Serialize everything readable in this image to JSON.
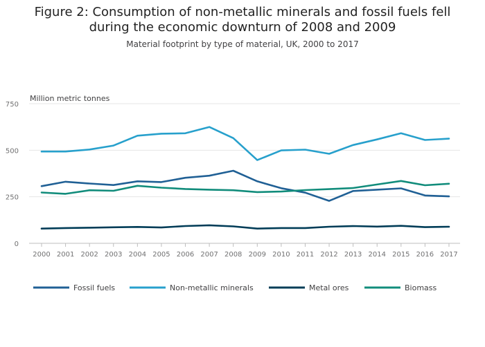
{
  "chart_data": {
    "type": "line",
    "title": "Figure 2: Consumption of non-metallic minerals and fossil fuels fell during the economic downturn of 2008 and 2009",
    "subtitle": "Material footprint by type of material, UK, 2000 to 2017",
    "xlabel": "",
    "ylabel": "Million metric tonnes",
    "ylim": [
      0,
      750
    ],
    "yticks": [
      0,
      250,
      500,
      750
    ],
    "ytick_labels": [
      "0",
      "250",
      "500",
      "750"
    ],
    "grid": true,
    "legend_position": "bottom",
    "x": [
      "2000",
      "2001",
      "2002",
      "2003",
      "2004",
      "2005",
      "2006",
      "2007",
      "2008",
      "2009",
      "2010",
      "2011",
      "2012",
      "2013",
      "2014",
      "2015",
      "2016",
      "2017"
    ],
    "series": [
      {
        "name": "Fossil fuels",
        "color": "#206095",
        "values": [
          307,
          331,
          321,
          313,
          333,
          329,
          352,
          363,
          390,
          333,
          296,
          272,
          228,
          281,
          288,
          295,
          257,
          252
        ]
      },
      {
        "name": "Non-metallic minerals",
        "color": "#27a0cc",
        "values": [
          493,
          493,
          504,
          525,
          578,
          589,
          591,
          625,
          565,
          447,
          499,
          503,
          481,
          528,
          558,
          591,
          555,
          562
        ]
      },
      {
        "name": "Metal ores",
        "color": "#003c57",
        "values": [
          79,
          82,
          84,
          86,
          88,
          85,
          93,
          97,
          91,
          79,
          82,
          82,
          89,
          93,
          90,
          94,
          87,
          89
        ]
      },
      {
        "name": "Biomass",
        "color": "#118c7b",
        "values": [
          273,
          266,
          285,
          282,
          309,
          299,
          292,
          288,
          285,
          275,
          278,
          286,
          291,
          297,
          316,
          335,
          312,
          320
        ]
      }
    ]
  }
}
